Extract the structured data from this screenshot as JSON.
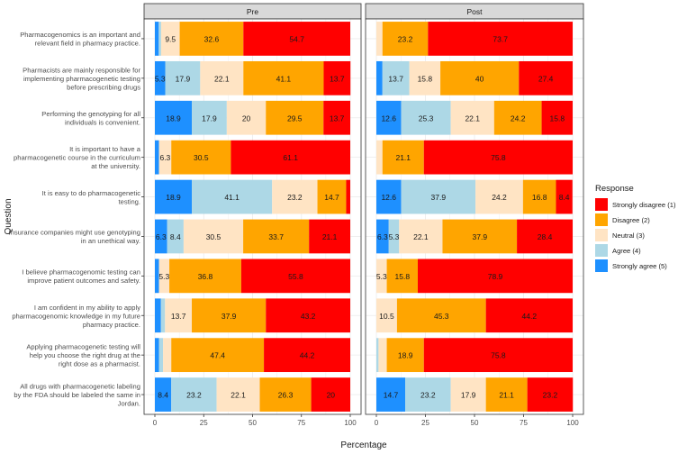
{
  "chart_data": {
    "type": "bar",
    "orientation": "horizontal-stacked",
    "panels": [
      "Pre",
      "Post"
    ],
    "xlabel": "Percentage",
    "ylabel": "Question",
    "xlim": [
      0,
      100
    ],
    "xticks": [
      "0",
      "25",
      "50",
      "75",
      "100"
    ],
    "legend_title": "Response",
    "legend_position": "right",
    "legend": [
      {
        "label": "Strongly disagree (1)",
        "color": "#ff0000"
      },
      {
        "label": "Disagree (2)",
        "color": "#ffa500"
      },
      {
        "label": "Neutral (3)",
        "color": "#ffe4c4"
      },
      {
        "label": "Agree (4)",
        "color": "#add8e6"
      },
      {
        "label": "Strongly agree (5)",
        "color": "#1e90ff"
      }
    ],
    "questions": [
      {
        "lines": [
          "Pharmacogenomics is an important and",
          "relevant field in pharmacy practice."
        ],
        "pre": {
          "values": [
            54.7,
            32.6,
            9.5,
            1.2,
            2.0
          ],
          "labels": [
            "54.7",
            "32.6",
            "9.5",
            "",
            ""
          ]
        },
        "post": {
          "values": [
            73.7,
            23.2,
            3.1,
            0,
            0
          ],
          "labels": [
            "73.7",
            "23.2",
            "",
            "",
            ""
          ]
        }
      },
      {
        "lines": [
          "Pharmacists are mainly responsible for",
          "implementing pharmacogenetic testing",
          "before prescribing drugs"
        ],
        "pre": {
          "values": [
            13.7,
            41.1,
            22.1,
            17.9,
            5.3
          ],
          "labels": [
            "13.7",
            "41.1",
            "22.1",
            "17.9",
            "5.3"
          ]
        },
        "post": {
          "values": [
            27.4,
            40,
            15.8,
            13.7,
            3.1
          ],
          "labels": [
            "27.4",
            "40",
            "15.8",
            "13.7",
            ""
          ]
        }
      },
      {
        "lines": [
          "Performing the genotyping for all",
          "individuals is convenient."
        ],
        "pre": {
          "values": [
            13.7,
            29.5,
            20,
            17.9,
            18.9
          ],
          "labels": [
            "13.7",
            "29.5",
            "20",
            "17.9",
            "18.9"
          ]
        },
        "post": {
          "values": [
            15.8,
            24.2,
            22.1,
            25.3,
            12.6
          ],
          "labels": [
            "15.8",
            "24.2",
            "22.1",
            "25.3",
            "12.6"
          ]
        }
      },
      {
        "lines": [
          "It is important to have a",
          "pharmacogenetic course in the curriculum",
          "at the university."
        ],
        "pre": {
          "values": [
            61.1,
            30.5,
            6.3,
            0,
            2.1
          ],
          "labels": [
            "61.1",
            "30.5",
            "6.3",
            "",
            ""
          ]
        },
        "post": {
          "values": [
            75.8,
            21.1,
            3.1,
            0,
            0
          ],
          "labels": [
            "75.8",
            "21.1",
            "",
            "",
            ""
          ]
        }
      },
      {
        "lines": [
          "It is easy to do pharmacogenetic",
          "testing."
        ],
        "pre": {
          "values": [
            2.1,
            14.7,
            23.2,
            41.1,
            18.9
          ],
          "labels": [
            "",
            "14.7",
            "23.2",
            "41.1",
            "18.9"
          ]
        },
        "post": {
          "values": [
            8.4,
            16.8,
            24.2,
            37.9,
            12.6
          ],
          "labels": [
            "8.4",
            "16.8",
            "24.2",
            "37.9",
            "12.6"
          ]
        }
      },
      {
        "lines": [
          "Insurance companies might use genotyping",
          "in an unethical way."
        ],
        "pre": {
          "values": [
            21.1,
            33.7,
            30.5,
            8.4,
            6.3
          ],
          "labels": [
            "21.1",
            "33.7",
            "30.5",
            "8.4",
            "6.3"
          ]
        },
        "post": {
          "values": [
            28.4,
            37.9,
            22.1,
            5.3,
            6.3
          ],
          "labels": [
            "28.4",
            "37.9",
            "22.1",
            "5.3",
            "6.3"
          ]
        }
      },
      {
        "lines": [
          "I believe pharmacogenomic testing can",
          "improve patient outcomes and safety."
        ],
        "pre": {
          "values": [
            55.8,
            36.8,
            5.3,
            0,
            2.1
          ],
          "labels": [
            "55.8",
            "36.8",
            "5.3",
            "",
            ""
          ]
        },
        "post": {
          "values": [
            78.9,
            15.8,
            5.3,
            0,
            0
          ],
          "labels": [
            "78.9",
            "15.8",
            "5.3",
            "",
            ""
          ]
        }
      },
      {
        "lines": [
          "I am confident in my ability to apply",
          "pharmacogenomic knowledge in my future",
          "pharmacy practice."
        ],
        "pre": {
          "values": [
            43.2,
            37.9,
            13.7,
            2.1,
            3.1
          ],
          "labels": [
            "43.2",
            "37.9",
            "13.7",
            "",
            ""
          ]
        },
        "post": {
          "values": [
            44.2,
            45.3,
            10.5,
            0,
            0
          ],
          "labels": [
            "44.2",
            "45.3",
            "10.5",
            "",
            ""
          ]
        }
      },
      {
        "lines": [
          "Applying pharmacogenetic testing will",
          "help you choose the right drug at the",
          "right dose as a pharmacist."
        ],
        "pre": {
          "values": [
            44.2,
            47.4,
            4.2,
            2.1,
            2.1
          ],
          "labels": [
            "44.2",
            "47.4",
            "",
            "",
            ""
          ]
        },
        "post": {
          "values": [
            75.8,
            18.9,
            4.2,
            1.1,
            0
          ],
          "labels": [
            "75.8",
            "18.9",
            "",
            "",
            ""
          ]
        }
      },
      {
        "lines": [
          "All drugs with pharmacogenetic labeling",
          "by the FDA should be labeled the same in",
          "Jordan."
        ],
        "pre": {
          "values": [
            20,
            26.3,
            22.1,
            23.2,
            8.4
          ],
          "labels": [
            "20",
            "26.3",
            "22.1",
            "23.2",
            "8.4"
          ]
        },
        "post": {
          "values": [
            23.2,
            21.1,
            17.9,
            23.2,
            14.7
          ],
          "labels": [
            "23.2",
            "21.1",
            "17.9",
            "23.2",
            "14.7"
          ]
        }
      }
    ]
  }
}
